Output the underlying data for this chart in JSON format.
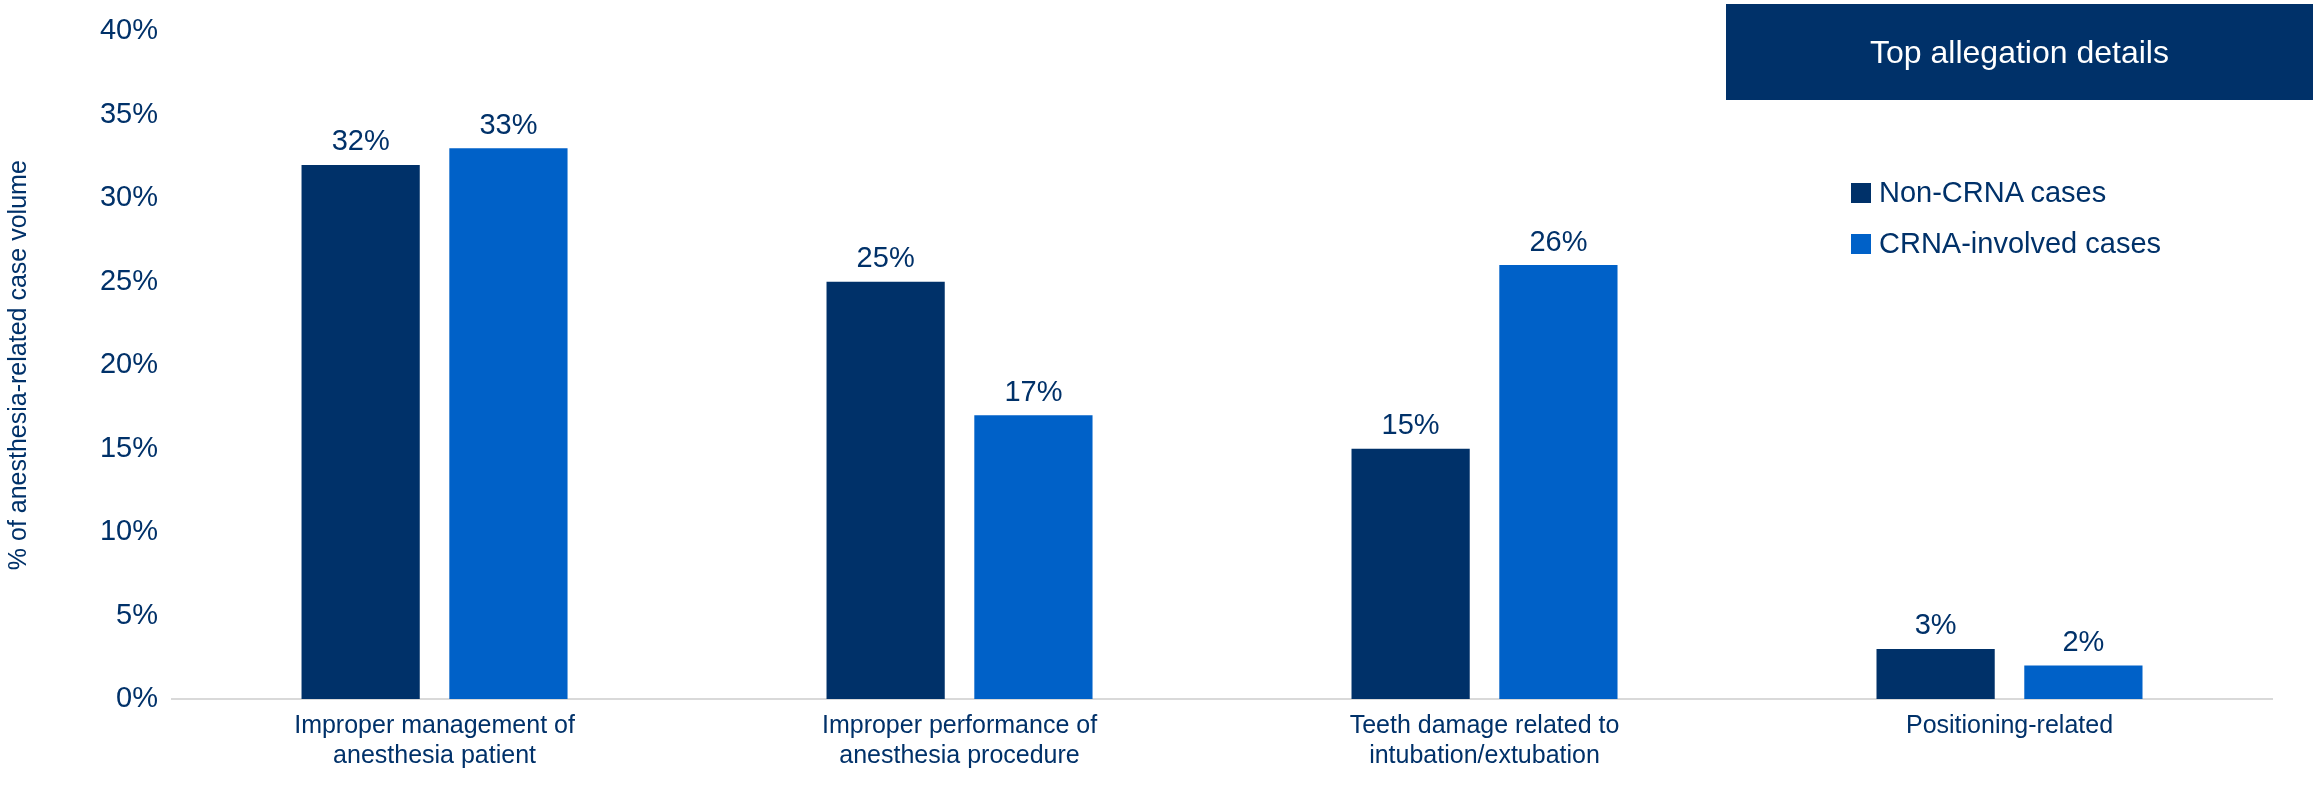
{
  "chart_data": {
    "type": "bar",
    "title": "Top allegation details",
    "ylabel": "% of anesthesia-related case volume",
    "categories": [
      "Improper management of anesthesia patient",
      "Improper performance of anesthesia procedure",
      "Teeth damage related to intubation/extubation",
      "Positioning-related"
    ],
    "series": [
      {
        "name": "Non-CRNA cases",
        "color": "#003169",
        "values": [
          32,
          25,
          15,
          3
        ],
        "value_labels": [
          "32%",
          "25%",
          "15%",
          "3%"
        ]
      },
      {
        "name": "CRNA-involved cases",
        "color": "#0061c8",
        "values": [
          33,
          17,
          26,
          2
        ],
        "value_labels": [
          "33%",
          "17%",
          "26%",
          "2%"
        ]
      }
    ],
    "ylim": [
      0,
      40
    ],
    "yticks": [
      {
        "value": 0,
        "label": "0%"
      },
      {
        "value": 5,
        "label": "5%"
      },
      {
        "value": 10,
        "label": "10%"
      },
      {
        "value": 15,
        "label": "15%"
      },
      {
        "value": 20,
        "label": "20%"
      },
      {
        "value": 25,
        "label": "25%"
      },
      {
        "value": 30,
        "label": "30%"
      },
      {
        "value": 35,
        "label": "35%"
      },
      {
        "value": 40,
        "label": "40%"
      }
    ],
    "grid": false,
    "legend": "top right"
  }
}
